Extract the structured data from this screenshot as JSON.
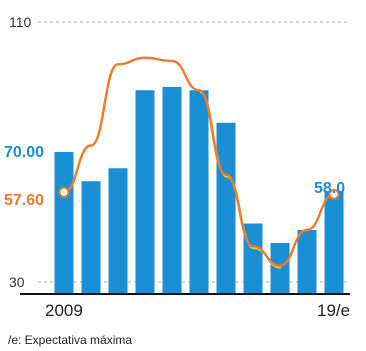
{
  "chart_data": {
    "type": "bar",
    "x_labels": [
      "2009",
      "19/e"
    ],
    "y_ticks": [
      110,
      30
    ],
    "ylim": [
      30,
      110
    ],
    "series": [
      {
        "values": [
          70.0,
          61,
          65,
          89,
          90,
          89,
          79,
          48,
          42,
          46,
          58.0
        ],
        "color": "#1a8fd6",
        "labels": {
          "first": "70.00",
          "last": "58.0"
        }
      },
      {
        "values": [
          57.6,
          72,
          97,
          99,
          98,
          89,
          63,
          41,
          35,
          46,
          57.0
        ],
        "color": "#f07a2a",
        "labels": {
          "first": "57.60"
        }
      }
    ],
    "footnote": "/e: Expectativa máxima"
  }
}
